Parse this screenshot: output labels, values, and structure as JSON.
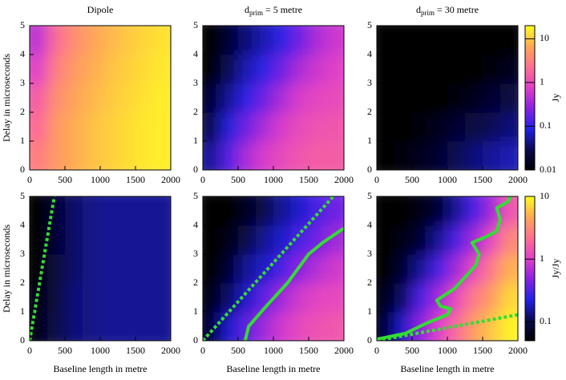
{
  "chart_data": [
    {
      "type": "heatmap",
      "title": "Dipole",
      "ylabel": "Delay in microseconds",
      "colorbar": 6,
      "x_edges": [
        0,
        250,
        500,
        750,
        1000,
        1250,
        1500,
        1750,
        2000
      ],
      "y_edges": [
        0,
        1,
        2,
        3,
        4,
        5
      ],
      "z": [
        [
          3,
          5,
          7,
          9,
          11,
          13,
          15,
          16
        ],
        [
          2,
          5,
          7,
          9,
          11,
          13,
          15,
          16
        ],
        [
          1.5,
          4,
          6,
          8,
          10,
          12,
          14,
          16
        ],
        [
          0.8,
          3,
          5,
          7,
          9,
          11,
          13,
          15
        ],
        [
          0.5,
          2,
          4,
          6,
          8,
          10,
          12,
          14
        ]
      ],
      "xlim": [
        0,
        2000
      ],
      "ylim": [
        0,
        5
      ],
      "xticks": [
        0,
        500,
        1000,
        1500,
        2000
      ],
      "yticks": [
        0,
        1,
        2,
        3,
        4,
        5
      ],
      "lines": []
    },
    {
      "type": "heatmap",
      "title": "d",
      "title_sub": "prim",
      "title_rest": " = 5 metre",
      "colorbar": 6,
      "x_edges": [
        0,
        250,
        500,
        750,
        1000,
        1250,
        1500,
        1750,
        2000
      ],
      "y_edges": [
        0,
        1,
        2,
        3,
        4,
        5
      ],
      "z": [
        [
          0.05,
          0.15,
          0.4,
          0.7,
          1,
          1.3,
          1.5,
          1.5
        ],
        [
          0.03,
          0.08,
          0.2,
          0.4,
          0.7,
          1,
          1.2,
          1.3
        ],
        [
          0.02,
          0.05,
          0.1,
          0.2,
          0.4,
          0.7,
          0.9,
          1
        ],
        [
          0.01,
          0.03,
          0.06,
          0.1,
          0.2,
          0.4,
          0.6,
          0.8
        ],
        [
          0.01,
          0.02,
          0.04,
          0.06,
          0.1,
          0.2,
          0.4,
          0.6
        ]
      ],
      "xlim": [
        0,
        2000
      ],
      "ylim": [
        0,
        5
      ],
      "xticks": [
        0,
        500,
        1000,
        1500,
        2000
      ],
      "yticks": [
        0,
        1,
        2,
        3,
        4,
        5
      ],
      "lines": []
    },
    {
      "type": "heatmap",
      "title": "d",
      "title_sub": "prim",
      "title_rest": " = 30 metre",
      "colorbar": 6,
      "x_edges": [
        0,
        250,
        500,
        750,
        1000,
        1250,
        1500,
        1750,
        2000
      ],
      "y_edges": [
        0,
        1,
        2,
        3,
        4,
        5
      ],
      "z": [
        [
          0.01,
          0.012,
          0.015,
          0.02,
          0.03,
          0.04,
          0.05,
          0.06
        ],
        [
          0.01,
          0.01,
          0.012,
          0.015,
          0.02,
          0.025,
          0.03,
          0.04
        ],
        [
          0.01,
          0.01,
          0.01,
          0.01,
          0.012,
          0.015,
          0.02,
          0.025
        ],
        [
          0.01,
          0.01,
          0.01,
          0.01,
          0.01,
          0.01,
          0.012,
          0.015
        ],
        [
          0.01,
          0.01,
          0.01,
          0.01,
          0.01,
          0.01,
          0.01,
          0.01
        ]
      ],
      "xlim": [
        0,
        2000
      ],
      "ylim": [
        0,
        5
      ],
      "xticks": [
        0,
        500,
        1000,
        1500,
        2000
      ],
      "yticks": [
        0,
        1,
        2,
        3,
        4,
        5
      ],
      "lines": []
    },
    {
      "type": "heatmap",
      "ylabel": "Delay in microseconds",
      "xlabel": "Baseline length in metre",
      "colorbar": 7,
      "x_edges": [
        0,
        250,
        500,
        750,
        1000,
        1250,
        1500,
        1750,
        2000
      ],
      "y_edges": [
        0,
        1,
        2,
        3,
        4,
        5
      ],
      "z": [
        [
          0.06,
          0.1,
          0.13,
          0.14,
          0.15,
          0.15,
          0.15,
          0.15
        ],
        [
          0.06,
          0.09,
          0.13,
          0.14,
          0.15,
          0.15,
          0.15,
          0.15
        ],
        [
          0.05,
          0.09,
          0.12,
          0.14,
          0.15,
          0.15,
          0.15,
          0.15
        ],
        [
          0.05,
          0.08,
          0.12,
          0.14,
          0.15,
          0.15,
          0.15,
          0.15
        ],
        [
          0.05,
          0.08,
          0.12,
          0.14,
          0.15,
          0.15,
          0.15,
          0.15
        ]
      ],
      "xlim": [
        0,
        2000
      ],
      "ylim": [
        0,
        5
      ],
      "xticks": [
        0,
        500,
        1000,
        1500,
        2000
      ],
      "yticks": [
        0,
        1,
        2,
        3,
        4,
        5
      ],
      "lines": [
        {
          "style": "dashed",
          "color": "#33dd33",
          "x": [
            0,
            350
          ],
          "y": [
            0,
            5
          ]
        }
      ]
    },
    {
      "type": "heatmap",
      "xlabel": "Baseline length in metre",
      "colorbar": 7,
      "x_edges": [
        0,
        250,
        500,
        750,
        1000,
        1250,
        1500,
        1750,
        2000
      ],
      "y_edges": [
        0,
        1,
        2,
        3,
        4,
        5
      ],
      "z": [
        [
          0.08,
          0.2,
          0.35,
          0.6,
          0.9,
          1.2,
          1.4,
          1.5
        ],
        [
          0.06,
          0.12,
          0.2,
          0.35,
          0.6,
          0.9,
          1.1,
          1.2
        ],
        [
          0.05,
          0.08,
          0.15,
          0.2,
          0.3,
          0.5,
          0.7,
          0.9
        ],
        [
          0.05,
          0.06,
          0.1,
          0.15,
          0.2,
          0.3,
          0.4,
          0.6
        ],
        [
          0.05,
          0.05,
          0.07,
          0.1,
          0.15,
          0.2,
          0.3,
          0.4
        ]
      ],
      "xlim": [
        0,
        2000
      ],
      "ylim": [
        0,
        5
      ],
      "xticks": [
        0,
        500,
        1000,
        1500,
        2000
      ],
      "yticks": [
        0,
        1,
        2,
        3,
        4,
        5
      ],
      "lines": [
        {
          "style": "dashed",
          "color": "#33dd33",
          "x": [
            0,
            1850
          ],
          "y": [
            0,
            5
          ]
        },
        {
          "style": "solid",
          "color": "#33dd33",
          "x": [
            600,
            650,
            900,
            1200,
            1500,
            1700,
            2000
          ],
          "y": [
            0,
            0.5,
            1.2,
            2,
            3,
            3.4,
            3.9
          ]
        }
      ]
    },
    {
      "type": "heatmap",
      "xlabel": "Baseline length in metre",
      "colorbar": 7,
      "x_edges": [
        0,
        250,
        500,
        750,
        1000,
        1250,
        1500,
        1750,
        2000
      ],
      "y_edges": [
        0,
        1,
        2,
        3,
        4,
        5
      ],
      "z": [
        [
          0.08,
          0.2,
          0.5,
          1,
          2,
          4,
          6,
          9
        ],
        [
          0.06,
          0.12,
          0.3,
          0.6,
          1.2,
          2.5,
          4,
          7
        ],
        [
          0.05,
          0.08,
          0.15,
          0.3,
          0.6,
          1.2,
          2.5,
          5
        ],
        [
          0.05,
          0.06,
          0.08,
          0.15,
          0.3,
          0.6,
          1.2,
          3
        ],
        [
          0.05,
          0.05,
          0.06,
          0.08,
          0.15,
          0.3,
          0.6,
          1.5
        ]
      ],
      "xlim": [
        0,
        2000
      ],
      "ylim": [
        0,
        5
      ],
      "xticks": [
        0,
        500,
        1000,
        1500,
        2000
      ],
      "yticks": [
        0,
        1,
        2,
        3,
        4,
        5
      ],
      "lines": [
        {
          "style": "dashed",
          "color": "#33dd33",
          "x": [
            0,
            2000
          ],
          "y": [
            0,
            0.9
          ]
        },
        {
          "style": "solid",
          "color": "#33dd33",
          "x": [
            0,
            400,
            700,
            1000,
            1050,
            900,
            850,
            1100,
            1250,
            1400,
            1450,
            1350,
            1550,
            1700,
            1750,
            1700,
            1850,
            1900
          ],
          "y": [
            0.05,
            0.25,
            0.6,
            0.9,
            1.1,
            1.2,
            1.4,
            1.8,
            2.2,
            2.6,
            3.0,
            3.4,
            3.6,
            3.8,
            4.2,
            4.6,
            4.8,
            5
          ]
        }
      ]
    },
    {
      "type": "colorbar",
      "label": "Jy",
      "log": true,
      "zlim": [
        0.01,
        20
      ],
      "zticks": [
        0.01,
        0.1,
        1,
        10
      ],
      "colormap": [
        "#000000",
        "#0a0a50",
        "#2222e8",
        "#8a22e0",
        "#e040c8",
        "#ff7090",
        "#ffa855",
        "#ffff20"
      ]
    },
    {
      "type": "colorbar",
      "label": "Jy/Jy",
      "log": true,
      "zlim": [
        0.05,
        10
      ],
      "zticks": [
        0.1,
        1,
        10
      ],
      "colormap": [
        "#000000",
        "#0a0a50",
        "#2222e8",
        "#8a22e0",
        "#e040c8",
        "#ff7090",
        "#ffa855",
        "#ffff20"
      ]
    }
  ]
}
